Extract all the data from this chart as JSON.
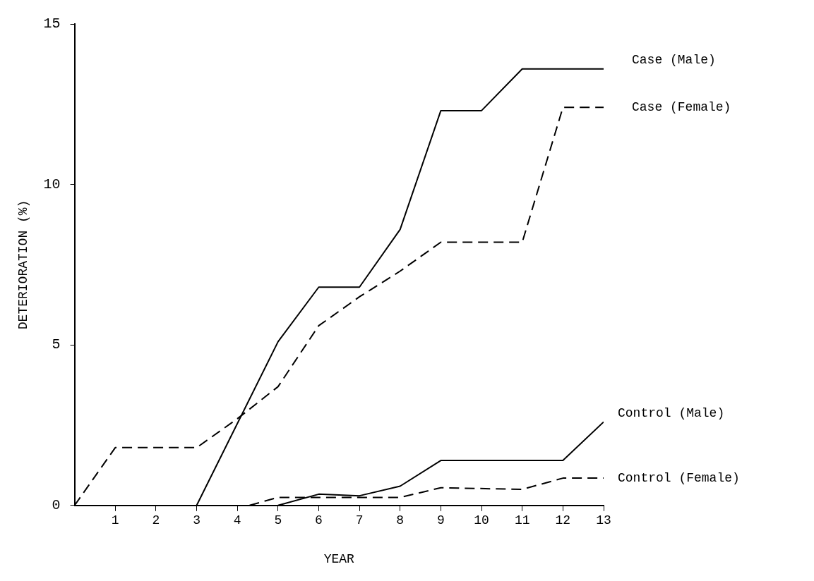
{
  "chart_data": {
    "type": "line",
    "xlabel": "YEAR",
    "ylabel": "DETERIORATION (%)",
    "xlim": [
      0,
      13
    ],
    "xticks": [
      1,
      2,
      3,
      4,
      5,
      6,
      7,
      8,
      9,
      10,
      11,
      12,
      13
    ],
    "ylim": [
      0,
      15
    ],
    "yticks": [
      0,
      5,
      10,
      15
    ],
    "grid": false,
    "legend": false,
    "marker": "none",
    "series": [
      {
        "name": "Case (Male)",
        "color": "#000000",
        "line_style": "solid",
        "x": [
          3,
          5,
          6,
          7,
          8,
          9,
          10,
          11,
          13
        ],
        "values": [
          0,
          5.1,
          6.8,
          6.8,
          8.6,
          12.3,
          12.3,
          13.6,
          13.6
        ]
      },
      {
        "name": "Case (Female)",
        "color": "#000000",
        "line_style": "dashed",
        "x": [
          0,
          1,
          3,
          4,
          5,
          6,
          7,
          8,
          9,
          11,
          12,
          13
        ],
        "values": [
          0,
          1.8,
          1.8,
          2.7,
          3.7,
          5.6,
          6.5,
          7.3,
          8.2,
          8.2,
          12.4,
          12.4
        ]
      },
      {
        "name": "Control (Male)",
        "color": "#000000",
        "line_style": "solid",
        "x": [
          5,
          6,
          7,
          8,
          9,
          12,
          13
        ],
        "values": [
          0,
          0.35,
          0.3,
          0.6,
          1.4,
          1.4,
          2.6
        ]
      },
      {
        "name": "Control (Female)",
        "color": "#000000",
        "line_style": "dashed",
        "x": [
          4.3,
          5,
          8,
          9,
          11,
          12,
          13
        ],
        "values": [
          0,
          0.25,
          0.25,
          0.55,
          0.5,
          0.85,
          0.85
        ]
      }
    ]
  }
}
